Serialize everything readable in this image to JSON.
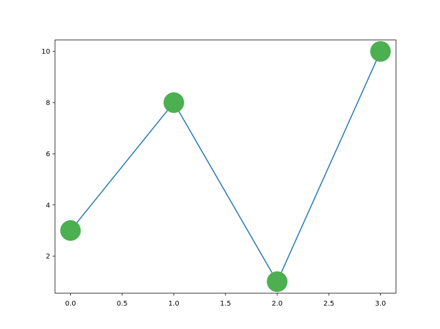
{
  "chart_data": {
    "type": "line",
    "title": "",
    "xlabel": "",
    "ylabel": "",
    "x": [
      0,
      1,
      2,
      3
    ],
    "series": [
      {
        "values": [
          3,
          8,
          1,
          10
        ]
      }
    ],
    "xlim": [
      -0.15,
      3.15
    ],
    "ylim": [
      0.55,
      10.45
    ],
    "xticks": [
      "0.0",
      "0.5",
      "1.0",
      "1.5",
      "2.0",
      "2.5",
      "3.0"
    ],
    "xtick_values": [
      0,
      0.5,
      1,
      1.5,
      2,
      2.5,
      3
    ],
    "yticks": [
      "2",
      "4",
      "6",
      "8",
      "10"
    ],
    "ytick_values": [
      2,
      4,
      6,
      8,
      10
    ],
    "grid": false,
    "line_color": "#1f77b4",
    "marker_color": "#4caf50",
    "marker": "circle"
  }
}
